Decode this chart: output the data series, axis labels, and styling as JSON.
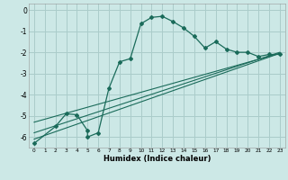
{
  "xlabel": "Humidex (Indice chaleur)",
  "bg_color": "#cce8e6",
  "grid_color": "#aaccca",
  "line_color": "#1a6b5a",
  "xlim": [
    -0.5,
    23.5
  ],
  "ylim": [
    -6.5,
    0.3
  ],
  "xticks": [
    0,
    1,
    2,
    3,
    4,
    5,
    6,
    7,
    8,
    9,
    10,
    11,
    12,
    13,
    14,
    15,
    16,
    17,
    18,
    19,
    20,
    21,
    22,
    23
  ],
  "yticks": [
    0,
    -1,
    -2,
    -3,
    -4,
    -5,
    -6
  ],
  "curve1_x": [
    0,
    2,
    3,
    4,
    5,
    5,
    6,
    7,
    8,
    9,
    10,
    11,
    12,
    13,
    14,
    15,
    16,
    17,
    18,
    19,
    20,
    21,
    22,
    23
  ],
  "curve1_y": [
    -6.3,
    -5.5,
    -4.9,
    -4.95,
    -5.7,
    -6.0,
    -5.8,
    -3.7,
    -2.45,
    -2.3,
    -0.65,
    -0.35,
    -0.3,
    -0.55,
    -0.85,
    -1.25,
    -1.8,
    -1.5,
    -1.85,
    -2.0,
    -2.0,
    -2.2,
    -2.1,
    -2.1
  ],
  "line2_x": [
    0,
    23
  ],
  "line2_y": [
    -5.8,
    -2.0
  ],
  "line3_x": [
    0,
    23
  ],
  "line3_y": [
    -5.3,
    -2.05
  ],
  "line4_x": [
    0,
    23
  ],
  "line4_y": [
    -6.1,
    -2.05
  ]
}
